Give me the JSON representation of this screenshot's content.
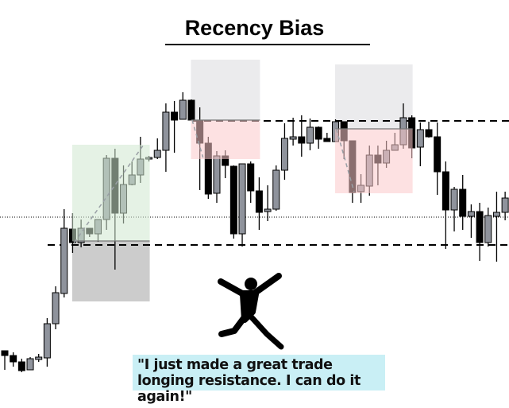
{
  "title": "Recency Bias",
  "quote": "\"I just made a great trade longing resistance. I can do it again!\"",
  "figure_icon": "jumping-person-icon",
  "colors": {
    "bull": "#8f939c",
    "bear": "#000000",
    "long_box": "#dff0df",
    "stop_box": "#cccccc",
    "target_box": "#ebebed",
    "short_box": "#fde0e1",
    "quote_bg": "#c9eff5"
  },
  "chart_data": {
    "type": "candlestick",
    "title": "Recency Bias",
    "xlabel": "",
    "ylabel": "",
    "grid": false,
    "axes_visible": false,
    "candles": [
      [
        59,
        59,
        35,
        53
      ],
      [
        53,
        57,
        39,
        45
      ],
      [
        45,
        49,
        32,
        34
      ],
      [
        35,
        51,
        35,
        49
      ],
      [
        48,
        55,
        45,
        51
      ],
      [
        50,
        100,
        39,
        93
      ],
      [
        93,
        140,
        86,
        132
      ],
      [
        131,
        237,
        126,
        213
      ],
      [
        212,
        232,
        182,
        195
      ],
      [
        195,
        224,
        189,
        213
      ],
      [
        213,
        213,
        202,
        206
      ],
      [
        206,
        224,
        196,
        224
      ],
      [
        224,
        305,
        211,
        301
      ],
      [
        301,
        313,
        161,
        232
      ],
      [
        232,
        292,
        219,
        268
      ],
      [
        268,
        297,
        267,
        280
      ],
      [
        280,
        328,
        270,
        300
      ],
      [
        300,
        304,
        297,
        302
      ],
      [
        302,
        326,
        300,
        311
      ],
      [
        311,
        370,
        284,
        359
      ],
      [
        359,
        373,
        308,
        349
      ],
      [
        350,
        384,
        350,
        374
      ],
      [
        374,
        375,
        349,
        349
      ],
      [
        349,
        365,
        261,
        320
      ],
      [
        320,
        328,
        250,
        256
      ],
      [
        257,
        310,
        245,
        304
      ],
      [
        304,
        311,
        276,
        292
      ],
      [
        291,
        292,
        200,
        206
      ],
      [
        206,
        294,
        190,
        294
      ],
      [
        294,
        297,
        245,
        260
      ],
      [
        260,
        277,
        211,
        233
      ],
      [
        234,
        267,
        222,
        237
      ],
      [
        237,
        292,
        235,
        286
      ],
      [
        286,
        345,
        274,
        326
      ],
      [
        325,
        352,
        317,
        328
      ],
      [
        328,
        355,
        303,
        320
      ],
      [
        320,
        351,
        311,
        340
      ],
      [
        340,
        341,
        313,
        325
      ],
      [
        326,
        333,
        322,
        322
      ],
      [
        322,
        350,
        322,
        347
      ],
      [
        347,
        347,
        300,
        323
      ],
      [
        323,
        323,
        245,
        258
      ],
      [
        259,
        281,
        245,
        267
      ],
      [
        266,
        317,
        254,
        305
      ],
      [
        305,
        317,
        267,
        295
      ],
      [
        295,
        323,
        289,
        311
      ],
      [
        311,
        333,
        311,
        318
      ],
      [
        318,
        370,
        313,
        352
      ],
      [
        352,
        355,
        301,
        314
      ],
      [
        315,
        346,
        291,
        337
      ],
      [
        337,
        347,
        327,
        328
      ],
      [
        328,
        346,
        255,
        284
      ],
      [
        284,
        297,
        187,
        236
      ],
      [
        236,
        265,
        209,
        262
      ],
      [
        262,
        280,
        211,
        228
      ],
      [
        228,
        243,
        201,
        234
      ],
      [
        234,
        245,
        172,
        195
      ],
      [
        195,
        239,
        190,
        229
      ],
      [
        228,
        259,
        171,
        233
      ],
      [
        233,
        259,
        223,
        251
      ]
    ],
    "candle_format": [
      "open",
      "high",
      "low",
      "close"
    ],
    "levels": {
      "resistance": 348,
      "support": 192,
      "reference_dotted": 227
    },
    "zones": [
      {
        "kind": "long_entry",
        "from_candle": 8,
        "to_candle": 17,
        "top": 318,
        "bottom": 197,
        "color": "#cfe8cf"
      },
      {
        "kind": "long_stop",
        "from_candle": 8,
        "to_candle": 17,
        "top": 197,
        "bottom": 121,
        "color": "#cccccc"
      },
      {
        "kind": "short_stop",
        "from_candle": 22,
        "to_candle": 30,
        "top": 425,
        "bottom": 349,
        "color": "#ebebed"
      },
      {
        "kind": "short_target",
        "from_candle": 22,
        "to_candle": 30,
        "top": 349,
        "bottom": 300,
        "color": "#fcc8cb"
      },
      {
        "kind": "short_stop",
        "from_candle": 39,
        "to_candle": 48,
        "top": 419,
        "bottom": 338,
        "color": "#ebebed"
      },
      {
        "kind": "short_target",
        "from_candle": 39,
        "to_candle": 48,
        "top": 338,
        "bottom": 257,
        "color": "#fcc8cb"
      }
    ]
  }
}
